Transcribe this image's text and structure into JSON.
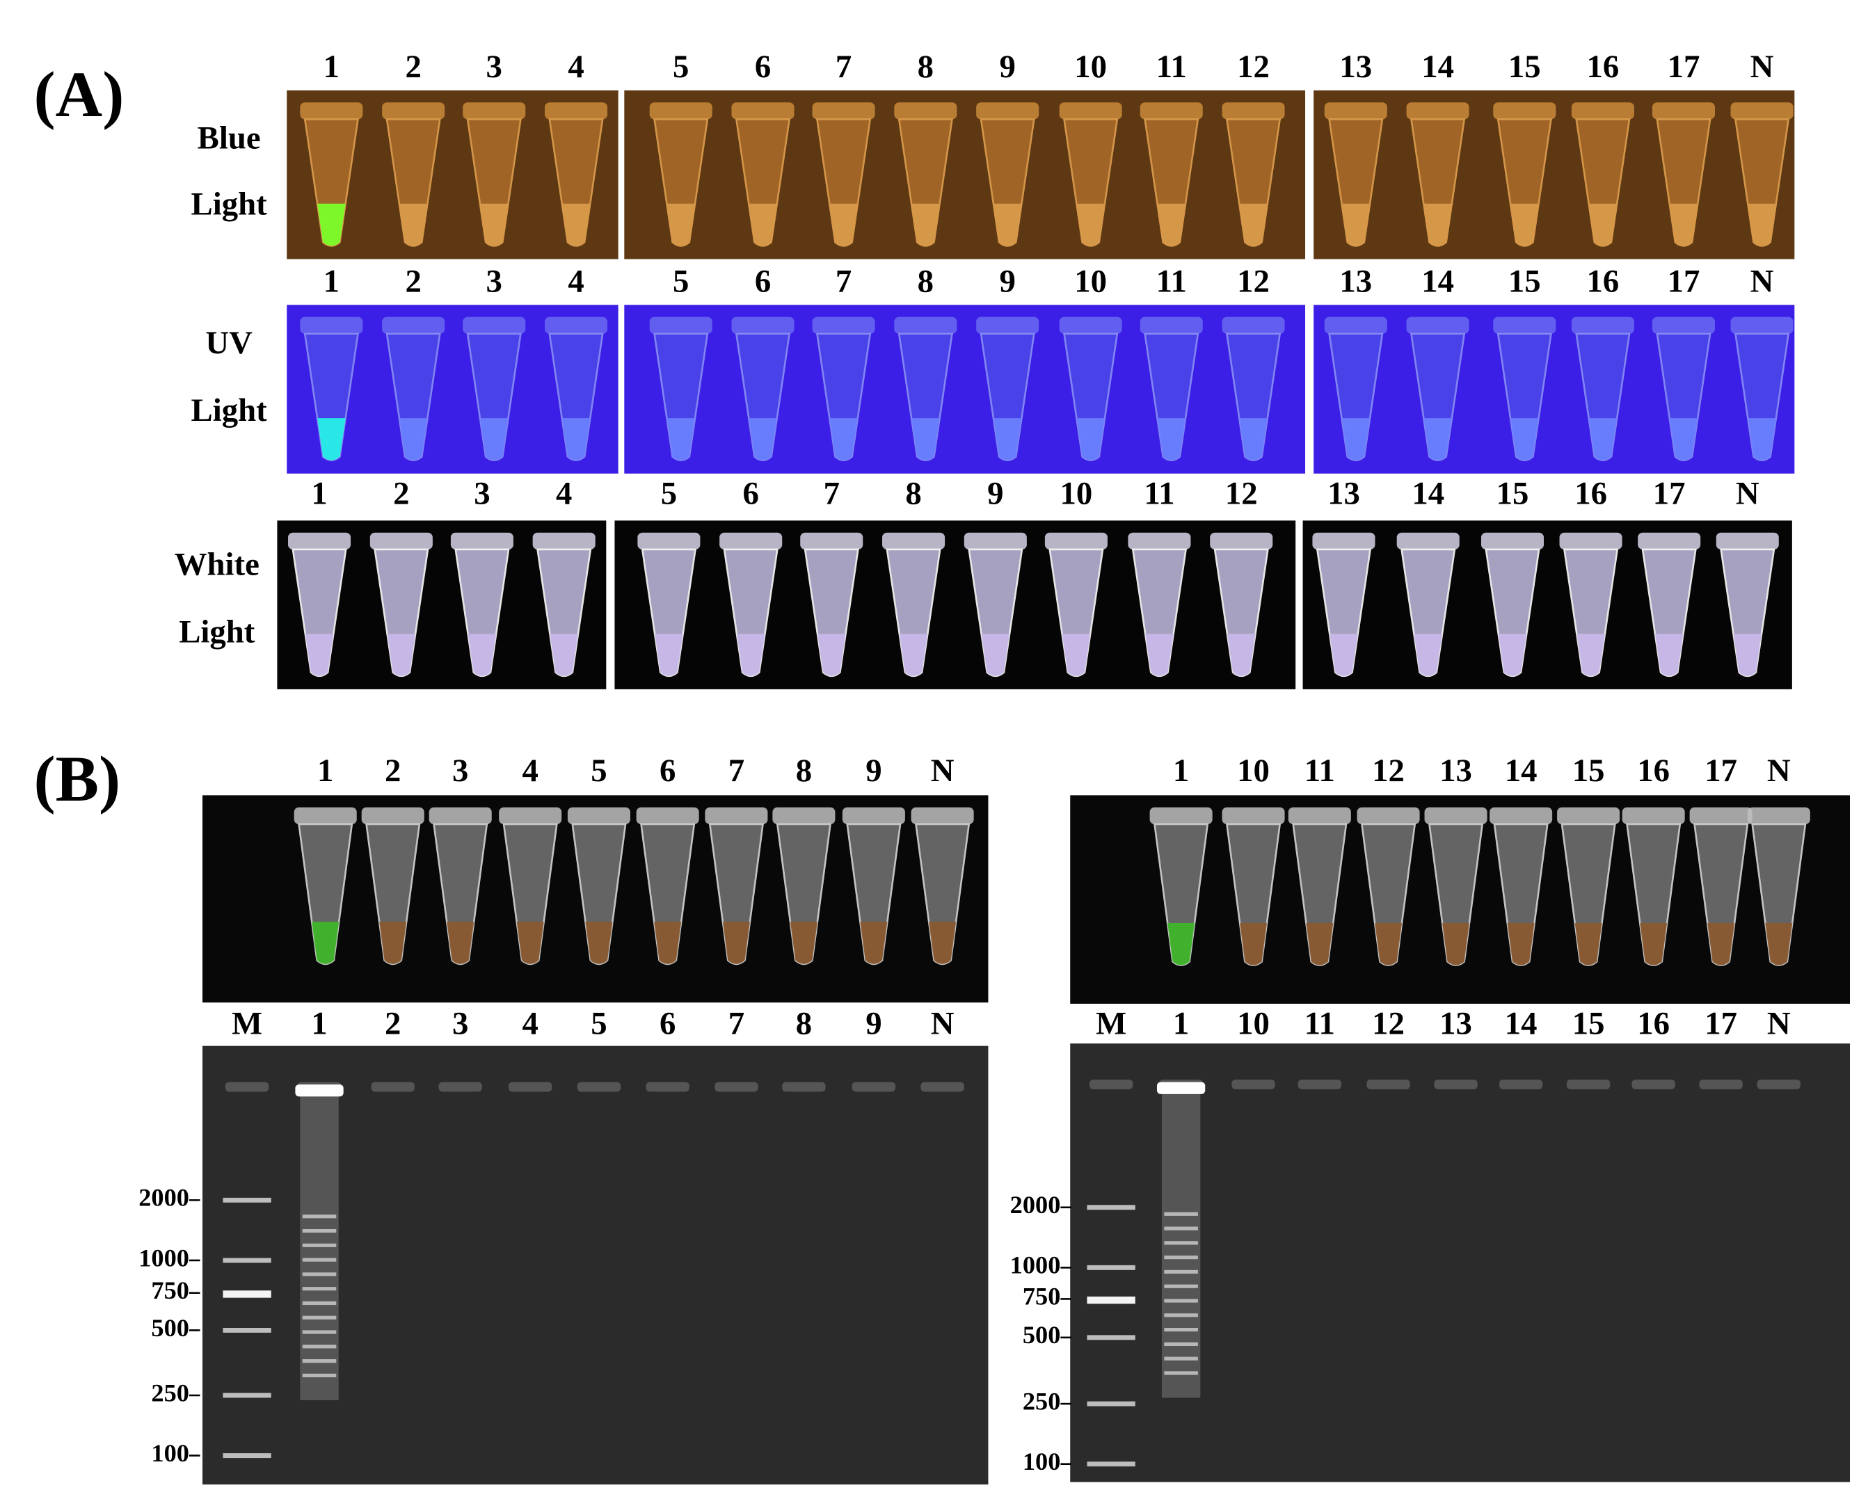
{
  "panel_a": {
    "label": "(A)",
    "rows": [
      {
        "label_lines": [
          "Blue",
          "Light"
        ],
        "lanes": [
          "1",
          "2",
          "3",
          "4",
          "5",
          "6",
          "7",
          "8",
          "9",
          "10",
          "11",
          "12",
          "13",
          "14",
          "15",
          "16",
          "17",
          "N"
        ]
      },
      {
        "label_lines": [
          "UV",
          "Light"
        ],
        "lanes": [
          "1",
          "2",
          "3",
          "4",
          "5",
          "6",
          "7",
          "8",
          "9",
          "10",
          "11",
          "12",
          "13",
          "14",
          "15",
          "16",
          "17",
          "N"
        ]
      },
      {
        "label_lines": [
          "White",
          "Light"
        ],
        "lanes": [
          "1",
          "2",
          "3",
          "4",
          "5",
          "6",
          "7",
          "8",
          "9",
          "10",
          "11",
          "12",
          "13",
          "14",
          "15",
          "16",
          "17",
          "N"
        ]
      }
    ]
  },
  "panel_b": {
    "label": "(B)",
    "gels": [
      {
        "tube_lanes": [
          "1",
          "2",
          "3",
          "4",
          "5",
          "6",
          "7",
          "8",
          "9",
          "N"
        ],
        "gel_lanes": [
          "M",
          "1",
          "2",
          "3",
          "4",
          "5",
          "6",
          "7",
          "8",
          "9",
          "N"
        ],
        "ladder": [
          "2000",
          "1000",
          "750",
          "500",
          "250",
          "100"
        ]
      },
      {
        "tube_lanes": [
          "1",
          "10",
          "11",
          "12",
          "13",
          "14",
          "15",
          "16",
          "17",
          "N"
        ],
        "gel_lanes": [
          "M",
          "1",
          "10",
          "11",
          "12",
          "13",
          "14",
          "15",
          "16",
          "17",
          "N"
        ],
        "ladder": [
          "2000",
          "1000",
          "750",
          "500",
          "250",
          "100"
        ]
      }
    ]
  }
}
